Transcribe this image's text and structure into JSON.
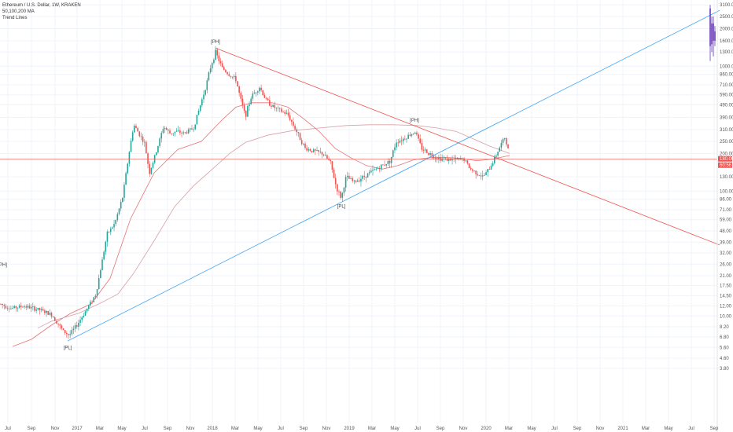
{
  "legend": {
    "title": "Ethereum / U.S. Dollar, 1W, KRAKEN",
    "indicator_ma": "50,100,200 MA",
    "indicator_trend": "Trend Lines"
  },
  "colors": {
    "up": "#26a69a",
    "down": "#ef5350",
    "ma": "#e57373",
    "ma200": "#d7a0a4",
    "trend_up": "#42a5f5",
    "trend_down": "#ef5350",
    "price_line": "#ef5350",
    "preview": "#673ab7"
  },
  "chart_data": {
    "type": "candlestick",
    "y_scale": "log",
    "ylim": [
      1.4,
      3200
    ],
    "y_ticks": [
      "3100.00",
      "2500.00",
      "2000.00",
      "1600.00",
      "1300.00",
      "1000.00",
      "860.00",
      "710.00",
      "590.00",
      "490.00",
      "390.00",
      "310.00",
      "250.00",
      "200.00",
      "130.00",
      "100.00",
      "86.00",
      "71.00",
      "59.00",
      "48.00",
      "39.00",
      "32.00",
      "26.00",
      "21.00",
      "17.50",
      "14.50",
      "12.00",
      "10.00",
      "8.20",
      "6.80",
      "5.60",
      "4.60",
      "3.80"
    ],
    "x_ticks": [
      {
        "label": "Jul",
        "x": 10
      },
      {
        "label": "Sep",
        "x": 40
      },
      {
        "label": "Nov",
        "x": 70
      },
      {
        "label": "2017",
        "x": 98
      },
      {
        "label": "Mar",
        "x": 127
      },
      {
        "label": "May",
        "x": 155
      },
      {
        "label": "Jul",
        "x": 184
      },
      {
        "label": "Sep",
        "x": 213
      },
      {
        "label": "Nov",
        "x": 242
      },
      {
        "label": "2018",
        "x": 270
      },
      {
        "label": "Mar",
        "x": 299
      },
      {
        "label": "May",
        "x": 328
      },
      {
        "label": "Jul",
        "x": 357
      },
      {
        "label": "Sep",
        "x": 386
      },
      {
        "label": "Nov",
        "x": 415
      },
      {
        "label": "2019",
        "x": 444
      },
      {
        "label": "Mar",
        "x": 473
      },
      {
        "label": "May",
        "x": 502
      },
      {
        "label": "Jul",
        "x": 531
      },
      {
        "label": "Sep",
        "x": 560
      },
      {
        "label": "Nov",
        "x": 589
      },
      {
        "label": "2020",
        "x": 618
      },
      {
        "label": "Mar",
        "x": 647
      },
      {
        "label": "May",
        "x": 676
      },
      {
        "label": "Jul",
        "x": 705
      },
      {
        "label": "Sep",
        "x": 734
      },
      {
        "label": "Nov",
        "x": 763
      },
      {
        "label": "2021",
        "x": 792
      },
      {
        "label": "Mar",
        "x": 821
      },
      {
        "label": "May",
        "x": 850
      },
      {
        "label": "Jul",
        "x": 879
      },
      {
        "label": "Sep",
        "x": 908
      }
    ],
    "anchors": [
      {
        "x": 0,
        "p": 12.5
      },
      {
        "x": 14,
        "p": 11.5
      },
      {
        "x": 30,
        "p": 12.0
      },
      {
        "x": 50,
        "p": 11.2
      },
      {
        "x": 66,
        "p": 10.2
      },
      {
        "x": 80,
        "p": 7.6
      },
      {
        "x": 88,
        "p": 7.0
      },
      {
        "x": 98,
        "p": 8.5
      },
      {
        "x": 112,
        "p": 11.8
      },
      {
        "x": 122,
        "p": 15.0
      },
      {
        "x": 130,
        "p": 28
      },
      {
        "x": 136,
        "p": 45
      },
      {
        "x": 146,
        "p": 55
      },
      {
        "x": 156,
        "p": 90
      },
      {
        "x": 164,
        "p": 200
      },
      {
        "x": 170,
        "p": 340
      },
      {
        "x": 178,
        "p": 280
      },
      {
        "x": 184,
        "p": 240
      },
      {
        "x": 190,
        "p": 140
      },
      {
        "x": 198,
        "p": 200
      },
      {
        "x": 208,
        "p": 330
      },
      {
        "x": 216,
        "p": 290
      },
      {
        "x": 224,
        "p": 300
      },
      {
        "x": 234,
        "p": 290
      },
      {
        "x": 246,
        "p": 320
      },
      {
        "x": 254,
        "p": 470
      },
      {
        "x": 262,
        "p": 700
      },
      {
        "x": 268,
        "p": 1000
      },
      {
        "x": 274,
        "p": 1300
      },
      {
        "x": 282,
        "p": 980
      },
      {
        "x": 290,
        "p": 870
      },
      {
        "x": 300,
        "p": 780
      },
      {
        "x": 306,
        "p": 540
      },
      {
        "x": 312,
        "p": 400
      },
      {
        "x": 320,
        "p": 580
      },
      {
        "x": 330,
        "p": 680
      },
      {
        "x": 338,
        "p": 540
      },
      {
        "x": 346,
        "p": 480
      },
      {
        "x": 356,
        "p": 440
      },
      {
        "x": 366,
        "p": 410
      },
      {
        "x": 376,
        "p": 310
      },
      {
        "x": 388,
        "p": 220
      },
      {
        "x": 398,
        "p": 210
      },
      {
        "x": 410,
        "p": 200
      },
      {
        "x": 420,
        "p": 170
      },
      {
        "x": 428,
        "p": 105
      },
      {
        "x": 434,
        "p": 88
      },
      {
        "x": 440,
        "p": 130
      },
      {
        "x": 450,
        "p": 118
      },
      {
        "x": 462,
        "p": 130
      },
      {
        "x": 474,
        "p": 145
      },
      {
        "x": 486,
        "p": 160
      },
      {
        "x": 496,
        "p": 175
      },
      {
        "x": 504,
        "p": 250
      },
      {
        "x": 512,
        "p": 260
      },
      {
        "x": 520,
        "p": 280
      },
      {
        "x": 528,
        "p": 300
      },
      {
        "x": 536,
        "p": 220
      },
      {
        "x": 546,
        "p": 200
      },
      {
        "x": 556,
        "p": 185
      },
      {
        "x": 566,
        "p": 180
      },
      {
        "x": 578,
        "p": 178
      },
      {
        "x": 590,
        "p": 180
      },
      {
        "x": 598,
        "p": 150
      },
      {
        "x": 606,
        "p": 140
      },
      {
        "x": 614,
        "p": 130
      },
      {
        "x": 622,
        "p": 150
      },
      {
        "x": 630,
        "p": 190
      },
      {
        "x": 636,
        "p": 230
      },
      {
        "x": 642,
        "p": 270
      },
      {
        "x": 648,
        "p": 190
      }
    ],
    "ma_lines": [
      {
        "name": "50",
        "points": [
          [
            16,
            5.7
          ],
          [
            40,
            6.5
          ],
          [
            66,
            8.5
          ],
          [
            90,
            10.5
          ],
          [
            116,
            12.5
          ],
          [
            140,
            20
          ],
          [
            166,
            60
          ],
          [
            196,
            140
          ],
          [
            226,
            215
          ],
          [
            256,
            250
          ],
          [
            282,
            370
          ],
          [
            300,
            470
          ],
          [
            320,
            510
          ],
          [
            346,
            510
          ],
          [
            366,
            470
          ],
          [
            386,
            380
          ],
          [
            406,
            300
          ],
          [
            426,
            220
          ],
          [
            446,
            185
          ],
          [
            466,
            160
          ],
          [
            486,
            150
          ],
          [
            506,
            160
          ],
          [
            526,
            178
          ],
          [
            546,
            185
          ],
          [
            566,
            186
          ],
          [
            586,
            183
          ],
          [
            606,
            175
          ],
          [
            626,
            180
          ],
          [
            648,
            193
          ]
        ]
      },
      {
        "name": "100",
        "points": [
          [
            48,
            8.0
          ],
          [
            66,
            9.1
          ],
          [
            100,
            10.5
          ],
          [
            126,
            12.5
          ],
          [
            150,
            15
          ],
          [
            170,
            22
          ],
          [
            196,
            40
          ],
          [
            222,
            75
          ],
          [
            246,
            110
          ],
          [
            270,
            150
          ],
          [
            292,
            200
          ],
          [
            312,
            245
          ],
          [
            340,
            280
          ],
          [
            372,
            305
          ],
          [
            406,
            320
          ],
          [
            440,
            335
          ],
          [
            470,
            340
          ],
          [
            500,
            340
          ],
          [
            530,
            335
          ],
          [
            556,
            320
          ],
          [
            580,
            300
          ],
          [
            600,
            265
          ],
          [
            622,
            230
          ],
          [
            648,
            200
          ]
        ]
      }
    ],
    "last_price": "180.00",
    "last_price_alt": "60:56",
    "preview_bars": [
      {
        "x": 903,
        "o": 2900,
        "c": 1450,
        "h": 3100,
        "l": 1100
      },
      {
        "x": 905,
        "o": 1500,
        "c": 2200,
        "h": 2500,
        "l": 1300
      },
      {
        "x": 907,
        "o": 2200,
        "c": 1600,
        "h": 2500,
        "l": 1200
      },
      {
        "x": 909,
        "o": 1600,
        "c": 1900,
        "h": 2100,
        "l": 1450
      }
    ],
    "trend_lines": [
      {
        "name": "uptrend",
        "x1": 86,
        "p1": 6.3,
        "x2": 915,
        "p2": 2800
      },
      {
        "name": "downtrend",
        "x1": 274,
        "p1": 1400,
        "x2": 915,
        "p2": 37
      }
    ],
    "pivots": [
      {
        "label": "[PH]",
        "x": 274,
        "p": 1400
      },
      {
        "label": "[PH]",
        "x": 527,
        "p": 330
      },
      {
        "label": "[PL]",
        "x": 86,
        "p": 6.2
      },
      {
        "label": "[PL]",
        "x": 434,
        "p": 84
      },
      {
        "label": "PH]",
        "x": 4,
        "p": 23
      }
    ]
  }
}
